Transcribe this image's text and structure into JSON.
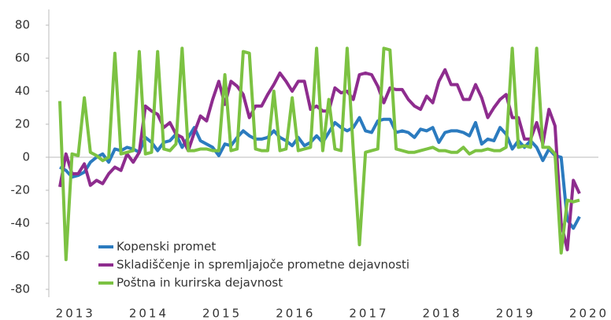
{
  "chart_data": {
    "type": "line",
    "categories": [
      null,
      "2013",
      null,
      null,
      null,
      null,
      null,
      null,
      null,
      null,
      null,
      null,
      null,
      "2014",
      null,
      null,
      null,
      null,
      null,
      null,
      null,
      null,
      null,
      null,
      null,
      "2015",
      null,
      null,
      null,
      null,
      null,
      null,
      null,
      null,
      null,
      null,
      null,
      "2016",
      null,
      null,
      null,
      null,
      null,
      null,
      null,
      null,
      null,
      null,
      null,
      "2017",
      null,
      null,
      null,
      null,
      null,
      null,
      null,
      null,
      null,
      null,
      null,
      "2018",
      null,
      null,
      null,
      null,
      null,
      null,
      null,
      null,
      null,
      null,
      null,
      "2019",
      null,
      null,
      null,
      null,
      null,
      null,
      null,
      null,
      null,
      null,
      null,
      "2020"
    ],
    "series": [
      {
        "name": "Kopenski promet",
        "color": "#2b7bbf",
        "values": [
          -6,
          -8,
          -12,
          -11,
          -9,
          -3,
          0,
          2,
          -3,
          5,
          4,
          6,
          5,
          3,
          12,
          9,
          4,
          9,
          10,
          14,
          6,
          12,
          18,
          10,
          8,
          6,
          1,
          8,
          7,
          12,
          16,
          13,
          11,
          11,
          12,
          16,
          12,
          10,
          7,
          12,
          7,
          9,
          13,
          9,
          15,
          21,
          18,
          16,
          18,
          24,
          16,
          15,
          22,
          23,
          23,
          15,
          16,
          15,
          12,
          17,
          16,
          18,
          9,
          15,
          16,
          16,
          15,
          13,
          21,
          8,
          11,
          10,
          18,
          14,
          5,
          10,
          6,
          10,
          6,
          -2,
          5,
          1,
          0,
          -38,
          -43,
          -36
        ]
      },
      {
        "name": "Skladiščenje in spremljajoče prometne dejavnosti",
        "color": "#8e2c8e",
        "values": [
          -18,
          2,
          -10,
          -10,
          -4,
          -17,
          -14,
          -16,
          -10,
          -6,
          -8,
          2,
          -3,
          3,
          31,
          28,
          26,
          18,
          21,
          14,
          12,
          4,
          15,
          25,
          22,
          35,
          46,
          32,
          46,
          43,
          38,
          24,
          31,
          31,
          38,
          44,
          51,
          46,
          40,
          46,
          46,
          29,
          31,
          28,
          28,
          42,
          39,
          40,
          35,
          50,
          51,
          50,
          43,
          33,
          42,
          41,
          41,
          35,
          31,
          29,
          37,
          33,
          46,
          53,
          44,
          44,
          35,
          35,
          44,
          36,
          24,
          30,
          35,
          38,
          24,
          24,
          11,
          11,
          21,
          8,
          29,
          19,
          -40,
          -56,
          -14,
          -22
        ]
      },
      {
        "name": "Poštna in kurirska dejavnost",
        "color": "#7cc242",
        "values": [
          34,
          -62,
          2,
          1,
          36,
          3,
          1,
          -2,
          0,
          63,
          2,
          3,
          4,
          64,
          2,
          3,
          64,
          5,
          4,
          8,
          66,
          4,
          4,
          5,
          5,
          4,
          4,
          50,
          4,
          5,
          64,
          63,
          5,
          4,
          4,
          40,
          4,
          5,
          36,
          4,
          5,
          6,
          66,
          4,
          35,
          5,
          4,
          66,
          4,
          -53,
          3,
          4,
          5,
          66,
          65,
          5,
          4,
          3,
          3,
          4,
          5,
          6,
          4,
          4,
          3,
          3,
          6,
          2,
          4,
          4,
          5,
          4,
          4,
          6,
          66,
          6,
          7,
          6,
          66,
          6,
          6,
          2,
          -58,
          -26,
          -27,
          -26
        ]
      }
    ],
    "ylim": [
      -80,
      80
    ],
    "yticks": [
      -80,
      -60,
      -40,
      -20,
      0,
      20,
      40,
      60,
      80
    ],
    "legend": "lower left"
  }
}
